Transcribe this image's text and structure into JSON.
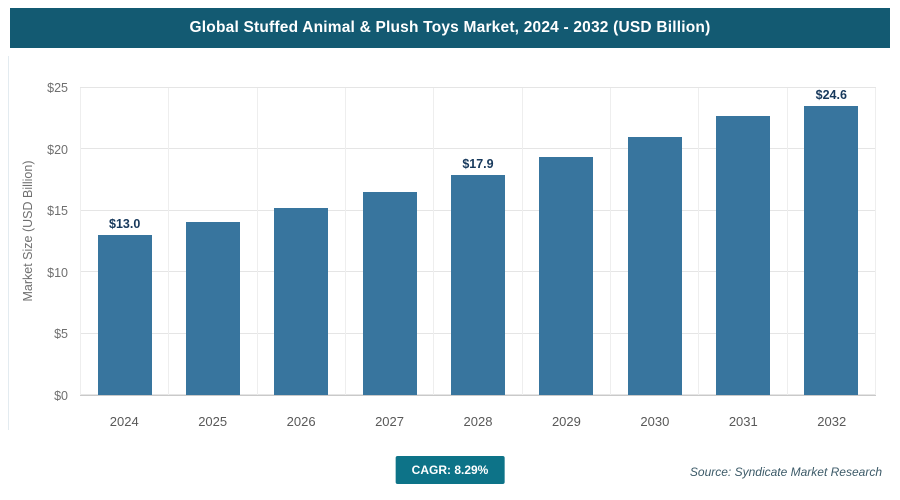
{
  "header": {
    "title": "Global Stuffed Animal & Plush Toys Market, 2024 - 2032 (USD Billion)"
  },
  "chart_data": {
    "type": "bar",
    "title": "Global Stuffed Animal & Plush Toys Market, 2024 - 2032 (USD Billion)",
    "categories": [
      "2024",
      "2025",
      "2026",
      "2027",
      "2028",
      "2029",
      "2030",
      "2031",
      "2032"
    ],
    "values": [
      13.0,
      14.1,
      15.2,
      16.5,
      17.9,
      19.4,
      21.0,
      22.7,
      24.6
    ],
    "point_labels": [
      "$13.0",
      null,
      null,
      null,
      "$17.9",
      null,
      null,
      null,
      "$24.6"
    ],
    "xlabel": "",
    "ylabel": "Market Size (USD Billion)",
    "ylim": [
      0,
      25
    ],
    "yticks": [
      "$0",
      "$5",
      "$10",
      "$15",
      "$20",
      "$25"
    ],
    "grid": true,
    "legend": "none",
    "bar_color": "#38759e"
  },
  "footer": {
    "cagr_label": "CAGR: 8.29%",
    "source": "Source: Syndicate Market Research"
  },
  "colors": {
    "title_bar_bg": "#135a72",
    "badge_bg": "#0d7388",
    "bar": "#38759e",
    "data_label": "#17395c"
  }
}
